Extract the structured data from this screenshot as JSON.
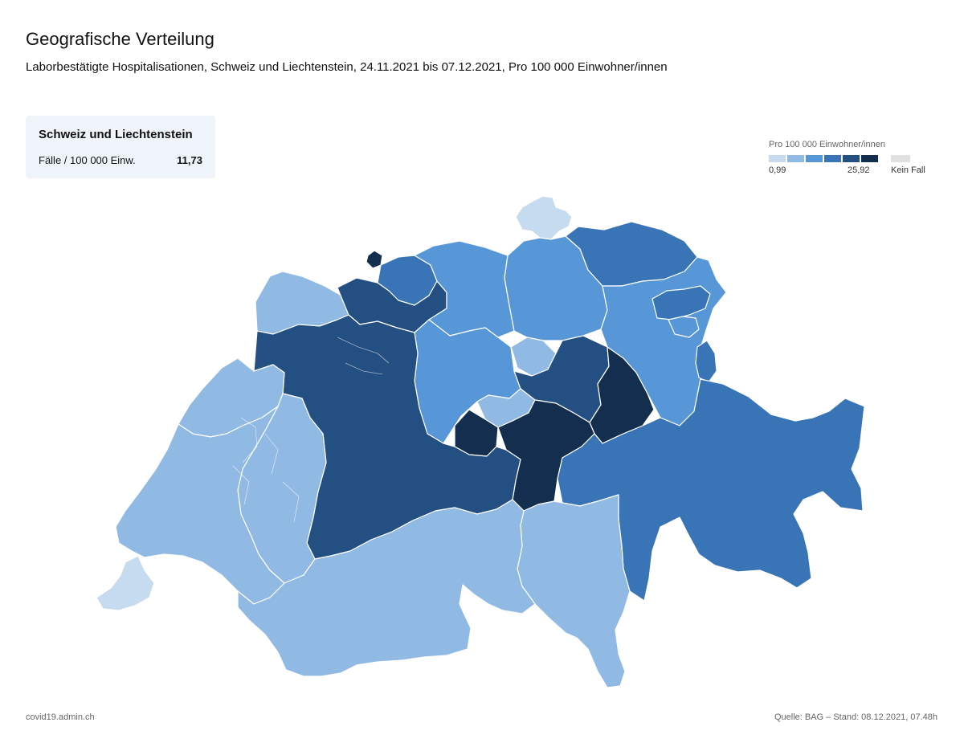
{
  "title": "Geografische Verteilung",
  "subtitle": "Laborbestätigte Hospitalisationen, Schweiz und Liechtenstein, 24.11.2021 bis 07.12.2021, Pro 100 000 Einwohner/innen",
  "summary": {
    "region": "Schweiz und Liechtenstein",
    "label": "Fälle / 100 000 Einw.",
    "value": "11,73"
  },
  "legend": {
    "title": "Pro 100 000 Einwohner/innen",
    "min": "0,99",
    "max": "25,92",
    "no_case": "Kein Fall",
    "colors": [
      "#c6dbef",
      "#90b9e3",
      "#5797d8",
      "#3874b6",
      "#244f82",
      "#142e4f"
    ],
    "no_case_color": "#e0e0e0"
  },
  "map": {
    "color_scale": [
      "#c6dbef",
      "#90b9e3",
      "#5797d8",
      "#3874b6",
      "#244f82",
      "#142e4f"
    ]
  },
  "footer": {
    "left": "covid19.admin.ch",
    "right": "Quelle: BAG – Stand: 08.12.2021, 07.48h"
  }
}
